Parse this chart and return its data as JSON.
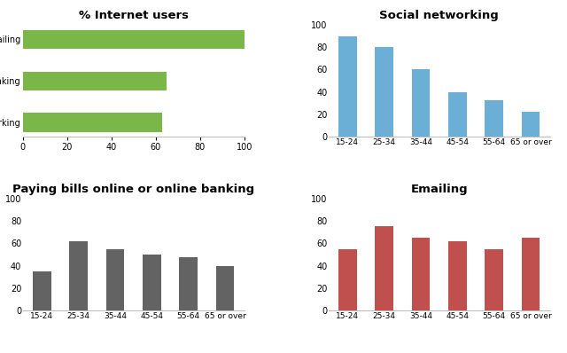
{
  "bar_chart": {
    "title": "% Internet users",
    "categories": [
      "Social networking",
      "Paying bills online or online banking",
      "Emailing"
    ],
    "values": [
      63,
      65,
      100
    ],
    "color": "#7ab648",
    "xlim": [
      0,
      100
    ],
    "xticks": [
      0,
      20,
      40,
      60,
      80,
      100
    ]
  },
  "social_networking": {
    "title": "Social networking",
    "categories": [
      "15-24",
      "25-34",
      "35-44",
      "45-54",
      "55-64",
      "65 or over"
    ],
    "values": [
      90,
      80,
      60,
      40,
      33,
      22
    ],
    "color": "#6baed6",
    "ylim": [
      0,
      100
    ],
    "yticks": [
      0,
      20,
      40,
      60,
      80,
      100
    ]
  },
  "paying_bills": {
    "title": "Paying bills online or online banking",
    "categories": [
      "15-24",
      "25-34",
      "35-44",
      "45-54",
      "55-64",
      "65 or over"
    ],
    "values": [
      35,
      62,
      55,
      50,
      48,
      40
    ],
    "color": "#636363",
    "ylim": [
      0,
      100
    ],
    "yticks": [
      0,
      20,
      40,
      60,
      80,
      100
    ]
  },
  "emailing": {
    "title": "Emailing",
    "categories": [
      "15-24",
      "25-34",
      "35-44",
      "45-54",
      "55-64",
      "65 or over"
    ],
    "values": [
      55,
      75,
      65,
      62,
      55,
      65
    ],
    "color": "#c0504d",
    "ylim": [
      0,
      100
    ],
    "yticks": [
      0,
      20,
      40,
      60,
      80,
      100
    ]
  },
  "background_color": "#ffffff",
  "title_fontsize": 9.5,
  "tick_fontsize": 7
}
